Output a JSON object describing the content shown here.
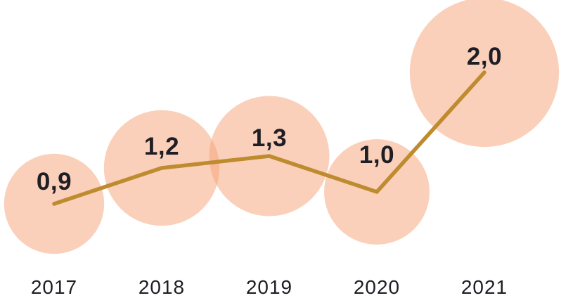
{
  "chart_data": {
    "type": "line",
    "subtype": "line-with-area-proportional-bubbles",
    "title": "",
    "xlabel": "",
    "ylabel": "",
    "categories": [
      "2017",
      "2018",
      "2019",
      "2020",
      "2021"
    ],
    "values": [
      0.9,
      1.2,
      1.3,
      1.0,
      2.0
    ],
    "labels": [
      "0,9",
      "1,2",
      "1,3",
      "1,0",
      "2,0"
    ],
    "decimal_separator": ",",
    "ylim": [
      0,
      2.2
    ],
    "grid": false,
    "legend": false,
    "colors": {
      "bubble_fill": "#F6A277",
      "bubble_opacity": 0.5,
      "line": "#BE8B2E",
      "text": "#1E1E24"
    }
  }
}
